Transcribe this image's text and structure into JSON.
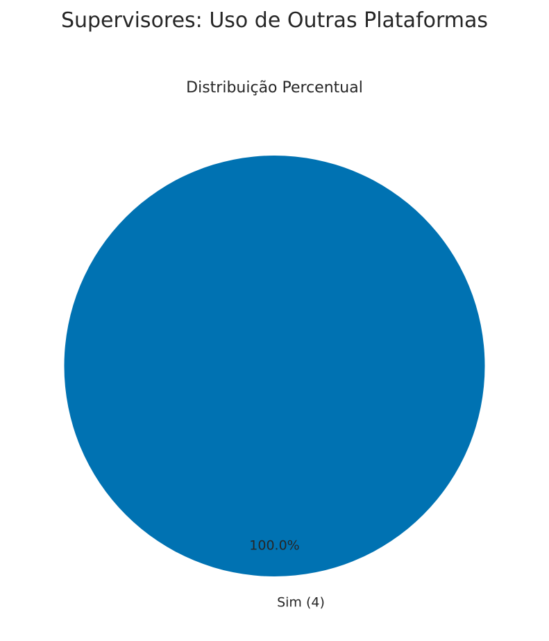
{
  "figure": {
    "suptitle": "Supervisores: Uso de Outras Plataformas"
  },
  "chart_data": {
    "type": "pie",
    "title": "Distribuição Percentual",
    "slices": [
      {
        "label": "Sim (4)",
        "category": "Sim",
        "count": 4,
        "value": 100.0,
        "percent_label": "100.0%",
        "color": "#0072b2"
      }
    ],
    "legend": "none"
  }
}
